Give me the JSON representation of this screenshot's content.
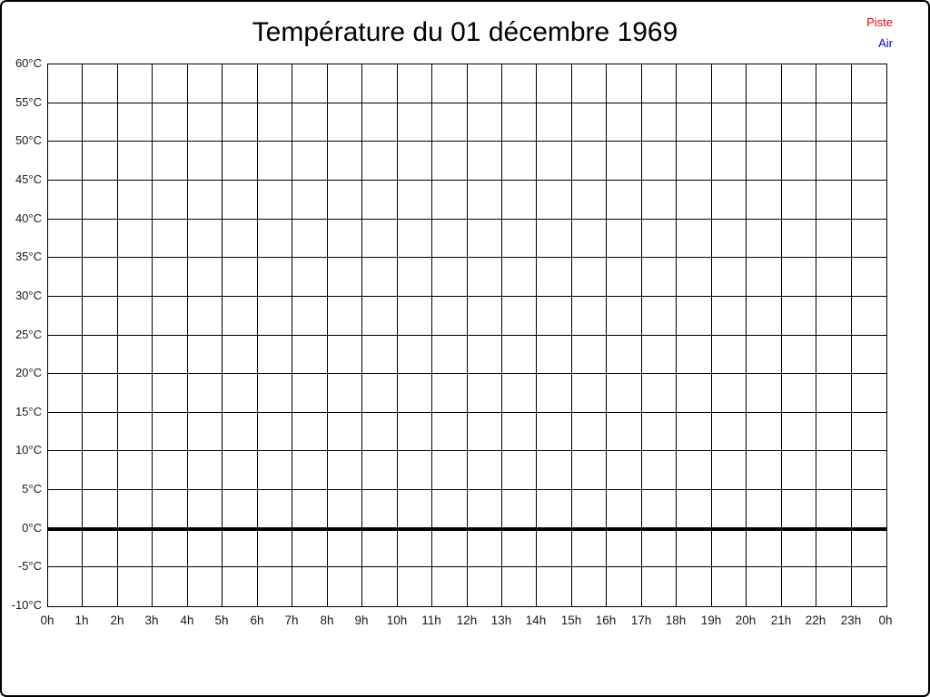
{
  "title": "Température du 01 décembre 1969",
  "legend": {
    "items": [
      {
        "label": "Piste",
        "color": "#ee0000"
      },
      {
        "label": "Air",
        "color": "#0000ee"
      }
    ]
  },
  "chart_data": {
    "type": "line",
    "title": "Température du 01 décembre 1969",
    "xlabel": "",
    "ylabel": "",
    "x_tick_labels": [
      "0h",
      "1h",
      "2h",
      "3h",
      "4h",
      "5h",
      "6h",
      "7h",
      "8h",
      "9h",
      "10h",
      "11h",
      "12h",
      "13h",
      "14h",
      "15h",
      "16h",
      "17h",
      "18h",
      "19h",
      "20h",
      "21h",
      "22h",
      "23h",
      "0h"
    ],
    "y_ticks": [
      60,
      55,
      50,
      45,
      40,
      35,
      30,
      25,
      20,
      15,
      10,
      5,
      0,
      -5,
      -10
    ],
    "y_tick_labels": [
      "60°C",
      "55°C",
      "50°C",
      "45°C",
      "40°C",
      "35°C",
      "30°C",
      "25°C",
      "20°C",
      "15°C",
      "10°C",
      "5°C",
      "0°C",
      "-5°C",
      "-10°C"
    ],
    "ylim": [
      -10,
      60
    ],
    "xlim_hours": [
      0,
      24
    ],
    "grid": true,
    "zero_line": {
      "value": 0,
      "thick": true
    },
    "legend_position": "top-right",
    "series": [
      {
        "name": "Piste",
        "color": "#ee0000",
        "values": []
      },
      {
        "name": "Air",
        "color": "#0000ee",
        "values": []
      }
    ]
  }
}
